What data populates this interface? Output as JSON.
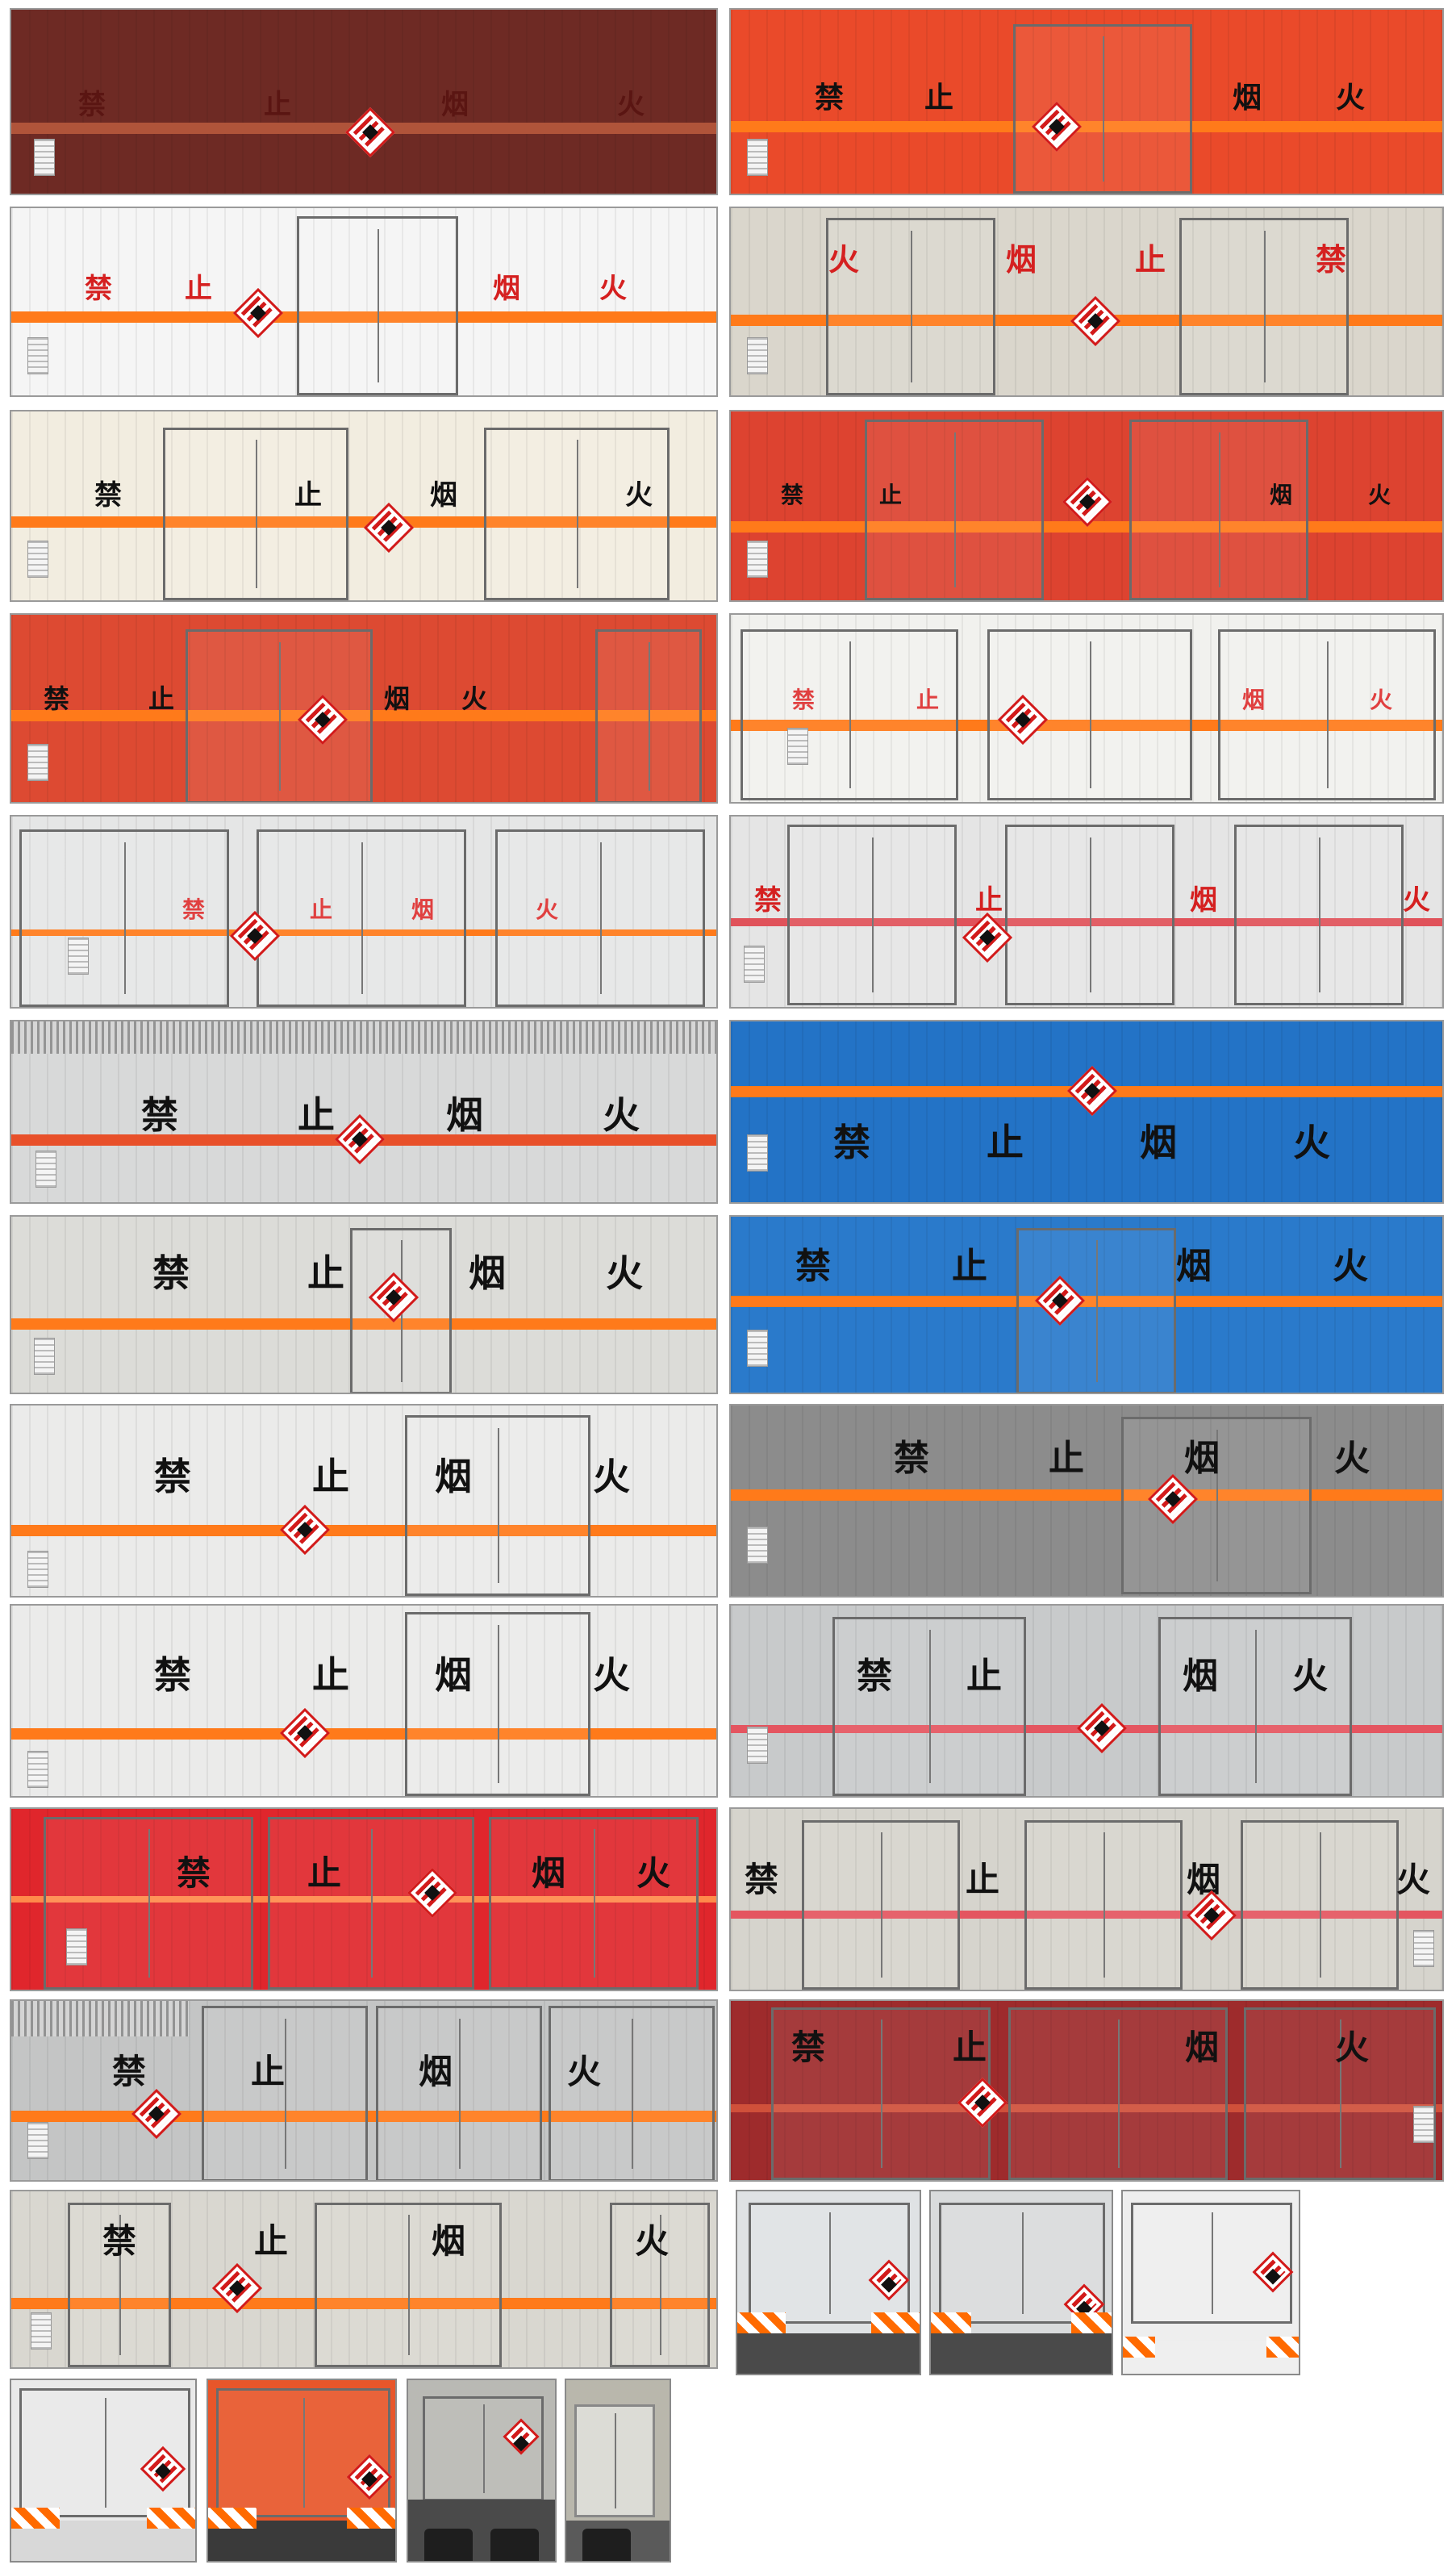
{
  "characters": [
    "禁",
    "止",
    "烟",
    "火"
  ],
  "panels": [
    {
      "id": "p01",
      "bg": "#6e2a24",
      "chars": [
        "禁",
        "止",
        "烟",
        "火"
      ],
      "char_color": "#5a1512",
      "order": "normal"
    },
    {
      "id": "p02",
      "bg": "#ea4a2a",
      "chars": [
        "禁",
        "止",
        "烟",
        "火"
      ],
      "char_color": "#111111",
      "order": "normal"
    },
    {
      "id": "p03",
      "bg": "#f5f5f5",
      "chars": [
        "禁",
        "止",
        "烟",
        "火"
      ],
      "char_color": "#d52020",
      "order": "normal"
    },
    {
      "id": "p04",
      "bg": "#dad6cc",
      "chars": [
        "火",
        "烟",
        "止",
        "禁"
      ],
      "char_color": "#d52020",
      "order": "mirrored"
    },
    {
      "id": "p05",
      "bg": "#f2ede0",
      "chars": [
        "禁",
        "止",
        "烟",
        "火"
      ],
      "char_color": "#111111",
      "order": "normal"
    },
    {
      "id": "p06",
      "bg": "#dd4330",
      "chars": [
        "禁",
        "止",
        "烟",
        "火"
      ],
      "char_color": "#111111",
      "order": "normal"
    },
    {
      "id": "p07",
      "bg": "#dd4a32",
      "chars": [
        "禁",
        "止",
        "烟",
        "火"
      ],
      "char_color": "#111111",
      "order": "normal"
    },
    {
      "id": "p08",
      "bg": "#f1f1ee",
      "chars": [
        "禁",
        "止",
        "烟",
        "火"
      ],
      "char_color": "#e04040",
      "order": "normal"
    },
    {
      "id": "p09",
      "bg": "#e5e6e6",
      "chars": [
        "禁",
        "止",
        "烟",
        "火"
      ],
      "char_color": "#e04040",
      "order": "normal"
    },
    {
      "id": "p10",
      "bg": "#e5e5e5",
      "chars": [
        "禁",
        "止",
        "烟",
        "火"
      ],
      "char_color": "#d52020",
      "order": "normal"
    },
    {
      "id": "p11",
      "bg": "#d8d9d9",
      "chars": [
        "禁",
        "止",
        "烟",
        "火"
      ],
      "char_color": "#111111",
      "order": "normal"
    },
    {
      "id": "p12",
      "bg": "#2373c6",
      "chars": [
        "禁",
        "止",
        "烟",
        "火"
      ],
      "char_color": "#111111",
      "order": "normal"
    },
    {
      "id": "p13",
      "bg": "#dcdcd8",
      "chars": [
        "禁",
        "止",
        "烟",
        "火"
      ],
      "char_color": "#111111",
      "order": "normal"
    },
    {
      "id": "p14",
      "bg": "#2a7acb",
      "chars": [
        "禁",
        "止",
        "烟",
        "火"
      ],
      "char_color": "#111111",
      "order": "normal"
    },
    {
      "id": "p15",
      "bg": "#ebebea",
      "chars": [
        "禁",
        "止",
        "烟",
        "火"
      ],
      "char_color": "#111111",
      "order": "normal"
    },
    {
      "id": "p16",
      "bg": "#8c8c8c",
      "chars": [
        "禁",
        "止",
        "烟",
        "火"
      ],
      "char_color": "#111111",
      "order": "normal"
    },
    {
      "id": "p17",
      "bg": "#ebebea",
      "chars": [
        "禁",
        "止",
        "烟",
        "火"
      ],
      "char_color": "#111111",
      "order": "normal"
    },
    {
      "id": "p18",
      "bg": "#c8cacb",
      "chars": [
        "禁",
        "止",
        "烟",
        "火"
      ],
      "char_color": "#111111",
      "order": "normal"
    },
    {
      "id": "p19",
      "bg": "#e0262c",
      "chars": [
        "禁",
        "止",
        "烟",
        "火"
      ],
      "char_color": "#111111",
      "order": "normal"
    },
    {
      "id": "p20",
      "bg": "#d6d4cd",
      "chars": [
        "禁",
        "止",
        "烟",
        "火"
      ],
      "char_color": "#111111",
      "order": "normal"
    },
    {
      "id": "p21",
      "bg": "#c4c5c5",
      "chars": [
        "禁",
        "止",
        "烟",
        "火"
      ],
      "char_color": "#111111",
      "order": "normal"
    },
    {
      "id": "p22",
      "bg": "#9e2b2c",
      "chars": [
        "禁",
        "止",
        "烟",
        "火"
      ],
      "char_color": "#111111",
      "order": "normal"
    },
    {
      "id": "p23",
      "bg": "#d9d7d0",
      "chars": [
        "禁",
        "止",
        "烟",
        "火"
      ],
      "char_color": "#111111",
      "order": "normal"
    }
  ],
  "rear_photos": [
    {
      "id": "r1",
      "bg": "#dfe2e4"
    },
    {
      "id": "r2",
      "bg": "#d9dbdc"
    },
    {
      "id": "r3",
      "bg": "#eeeeee"
    },
    {
      "id": "r4",
      "bg": "#e9e9e9"
    },
    {
      "id": "r5",
      "bg": "#e8562a"
    },
    {
      "id": "r6",
      "bg": "#b9b9b4"
    },
    {
      "id": "r7",
      "bg": "#b9b7ac"
    }
  ]
}
